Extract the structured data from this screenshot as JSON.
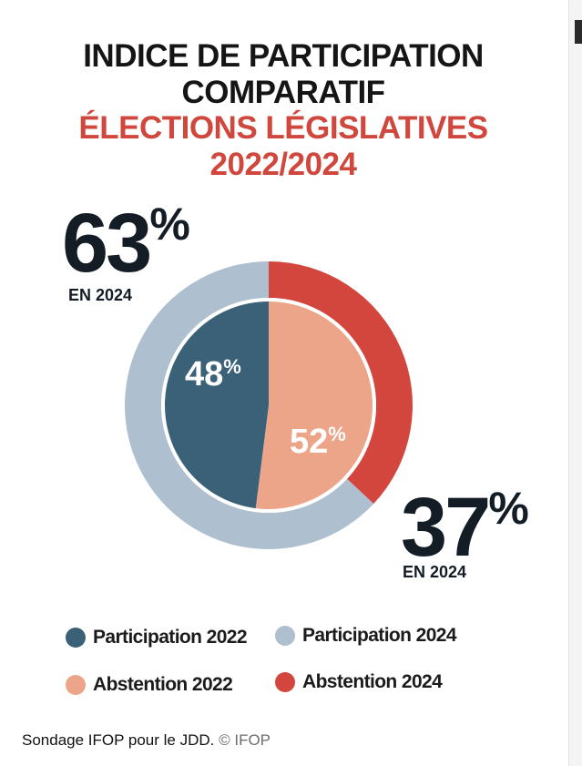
{
  "title": {
    "line1": "INDICE DE PARTICIPATION",
    "line2": "COMPARATIF",
    "line3": "ÉLECTIONS LÉGISLATIVES",
    "line4": "2022/2024"
  },
  "callouts": {
    "participation_2024_value": "63",
    "participation_2024_pct": "%",
    "participation_2024_label": "EN 2024",
    "abstention_2024_value": "37",
    "abstention_2024_pct": "%",
    "abstention_2024_label": "EN 2024",
    "participation_2022_value": "48",
    "participation_2022_pct": "%",
    "abstention_2022_value": "52",
    "abstention_2022_pct": "%"
  },
  "legend": [
    {
      "label": "Participation 2022",
      "color": "#3b6178"
    },
    {
      "label": "Participation 2024",
      "color": "#aebfcf"
    },
    {
      "label": "Abstention 2022",
      "color": "#eda58a"
    },
    {
      "label": "Abstention 2024",
      "color": "#d2463d"
    }
  ],
  "caption": {
    "source": "Sondage IFOP pour le JDD.",
    "copyright": "© IFOP"
  },
  "colors": {
    "participation_2022": "#3b6178",
    "participation_2024": "#aebfcf",
    "abstention_2022": "#eda58a",
    "abstention_2024": "#d2463d",
    "title_red": "#d0473d"
  },
  "chart_data": {
    "type": "pie",
    "rings": [
      {
        "ring": "outer",
        "slices": [
          {
            "name": "Participation 2024",
            "value": 63
          },
          {
            "name": "Abstention 2024",
            "value": 37
          }
        ]
      },
      {
        "ring": "inner",
        "slices": [
          {
            "name": "Participation 2022",
            "value": 48
          },
          {
            "name": "Abstention 2022",
            "value": 52
          }
        ]
      }
    ],
    "legend_position": "bottom"
  }
}
